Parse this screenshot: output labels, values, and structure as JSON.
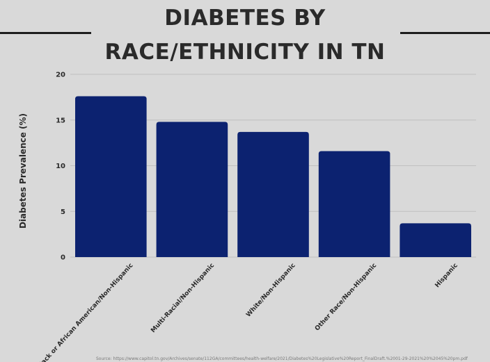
{
  "title_lines": [
    "DIABETES BY",
    "RACE/ETHNICITY IN TN"
  ],
  "source": "Source: https://www.capitol.tn.gov/Archives/senate/112GA/committees/health-welfare/2021/Diabetes%20Legislative%20Report_FinalDraft.%2001-29-2021%20%2045%20pm.pdf",
  "colors": {
    "bar": "#0c2270",
    "background": "#d9d9d9",
    "grid": "#bfbfbf",
    "text": "#2a2a2a"
  },
  "chart_data": {
    "type": "bar",
    "title": "DIABETES BY RACE/ETHNICITY IN TN",
    "xlabel": "",
    "ylabel": "Diabetes Prevalence (%)",
    "ylim": [
      0,
      20
    ],
    "yticks": [
      0,
      5,
      10,
      15,
      20
    ],
    "grid": true,
    "categories": [
      "Black or African American/Non-Hispanic",
      "Multi-Racial/Non-Hispanic",
      "White/Non-Hispanic",
      "Other Race/Non-Hispanic",
      "Hispanic"
    ],
    "values": [
      17.6,
      14.8,
      13.7,
      11.6,
      3.7
    ]
  }
}
